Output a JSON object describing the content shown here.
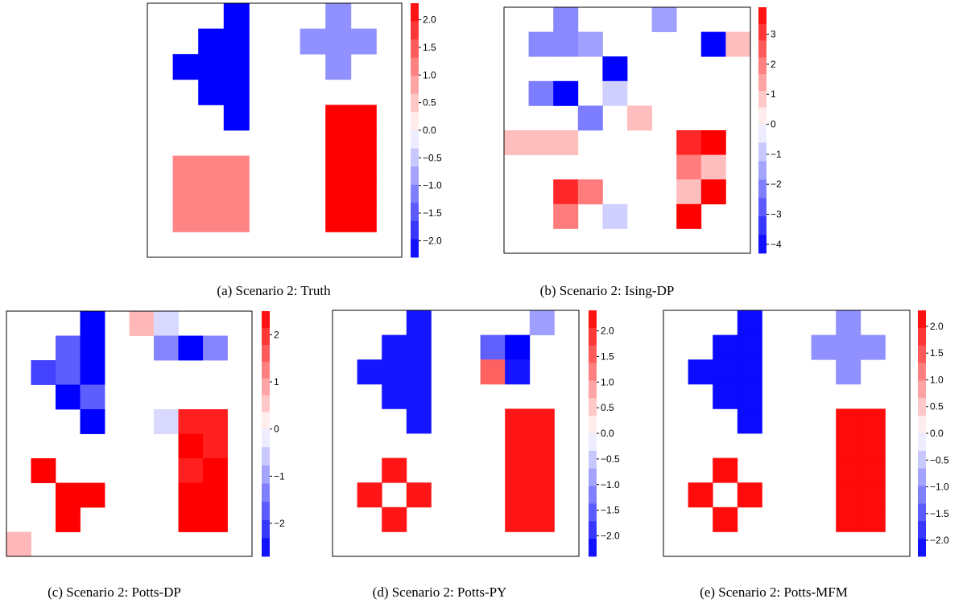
{
  "colors": {
    "negative_strong": "#0000ff",
    "positive_strong": "#ff0000",
    "neutral": "#ffffff",
    "frame": "#000000"
  },
  "chart_data": [
    {
      "type": "heatmap",
      "caption": "(a) Scenario 2: Truth",
      "grid_size": [
        10,
        10
      ],
      "range": [
        -2.3,
        2.3
      ],
      "colorbar_ticks": [
        "2.0",
        "1.5",
        "1.0",
        "0.5",
        "0.0",
        "−0.5",
        "−1.0",
        "−1.5",
        "−2.0"
      ],
      "colorbar_tick_values": [
        2.0,
        1.5,
        1.0,
        0.5,
        0.0,
        -0.5,
        -1.0,
        -1.5,
        -2.0
      ],
      "cells": [
        {
          "row": 0,
          "col": 3,
          "value": -2.3
        },
        {
          "row": 1,
          "col": 2,
          "value": -2.3
        },
        {
          "row": 1,
          "col": 3,
          "value": -2.3
        },
        {
          "row": 2,
          "col": 1,
          "value": -2.3
        },
        {
          "row": 2,
          "col": 2,
          "value": -2.3
        },
        {
          "row": 2,
          "col": 3,
          "value": -2.3
        },
        {
          "row": 3,
          "col": 2,
          "value": -2.3
        },
        {
          "row": 3,
          "col": 3,
          "value": -2.3
        },
        {
          "row": 4,
          "col": 3,
          "value": -2.3
        },
        {
          "row": 0,
          "col": 7,
          "value": -1.0
        },
        {
          "row": 1,
          "col": 6,
          "value": -1.0
        },
        {
          "row": 1,
          "col": 7,
          "value": -1.0
        },
        {
          "row": 1,
          "col": 8,
          "value": -1.0
        },
        {
          "row": 2,
          "col": 7,
          "value": -1.0
        },
        {
          "row": 4,
          "col": 7,
          "value": 2.3
        },
        {
          "row": 4,
          "col": 8,
          "value": 2.3
        },
        {
          "row": 5,
          "col": 7,
          "value": 2.3
        },
        {
          "row": 5,
          "col": 8,
          "value": 2.3
        },
        {
          "row": 6,
          "col": 7,
          "value": 2.3
        },
        {
          "row": 6,
          "col": 8,
          "value": 2.3
        },
        {
          "row": 7,
          "col": 7,
          "value": 2.3
        },
        {
          "row": 7,
          "col": 8,
          "value": 2.3
        },
        {
          "row": 8,
          "col": 7,
          "value": 2.3
        },
        {
          "row": 8,
          "col": 8,
          "value": 2.3
        },
        {
          "row": 6,
          "col": 1,
          "value": 1.1
        },
        {
          "row": 6,
          "col": 2,
          "value": 1.1
        },
        {
          "row": 6,
          "col": 3,
          "value": 1.1
        },
        {
          "row": 7,
          "col": 1,
          "value": 1.1
        },
        {
          "row": 7,
          "col": 2,
          "value": 1.1
        },
        {
          "row": 7,
          "col": 3,
          "value": 1.1
        },
        {
          "row": 8,
          "col": 1,
          "value": 1.1
        },
        {
          "row": 8,
          "col": 2,
          "value": 1.1
        },
        {
          "row": 8,
          "col": 3,
          "value": 1.1
        }
      ]
    },
    {
      "type": "heatmap",
      "caption": "(b) Scenario 2: Ising-DP",
      "grid_size": [
        10,
        10
      ],
      "range": [
        -4.3,
        3.9
      ],
      "colorbar_ticks": [
        "3",
        "2",
        "1",
        "0",
        "−1",
        "−2",
        "−3",
        "−4"
      ],
      "colorbar_tick_values": [
        3,
        2,
        1,
        0,
        -1,
        -2,
        -3,
        -4
      ],
      "cells": [
        {
          "row": 0,
          "col": 2,
          "value": -2.0
        },
        {
          "row": 0,
          "col": 6,
          "value": -1.6
        },
        {
          "row": 1,
          "col": 1,
          "value": -2.0
        },
        {
          "row": 1,
          "col": 2,
          "value": -2.0
        },
        {
          "row": 1,
          "col": 3,
          "value": -1.6
        },
        {
          "row": 1,
          "col": 8,
          "value": -4.3
        },
        {
          "row": 1,
          "col": 9,
          "value": 1.0
        },
        {
          "row": 2,
          "col": 4,
          "value": -4.3
        },
        {
          "row": 3,
          "col": 1,
          "value": -2.2
        },
        {
          "row": 3,
          "col": 2,
          "value": -4.3
        },
        {
          "row": 3,
          "col": 4,
          "value": -0.8
        },
        {
          "row": 4,
          "col": 3,
          "value": -2.2
        },
        {
          "row": 4,
          "col": 5,
          "value": 1.0
        },
        {
          "row": 5,
          "col": 0,
          "value": 1.0
        },
        {
          "row": 5,
          "col": 1,
          "value": 1.0
        },
        {
          "row": 5,
          "col": 2,
          "value": 1.0
        },
        {
          "row": 5,
          "col": 7,
          "value": 3.3
        },
        {
          "row": 5,
          "col": 8,
          "value": 3.9
        },
        {
          "row": 6,
          "col": 7,
          "value": 2.0
        },
        {
          "row": 6,
          "col": 8,
          "value": 1.0
        },
        {
          "row": 7,
          "col": 2,
          "value": 3.3
        },
        {
          "row": 7,
          "col": 3,
          "value": 2.0
        },
        {
          "row": 7,
          "col": 7,
          "value": 1.0
        },
        {
          "row": 7,
          "col": 8,
          "value": 3.9
        },
        {
          "row": 8,
          "col": 2,
          "value": 2.0
        },
        {
          "row": 8,
          "col": 4,
          "value": -0.8
        },
        {
          "row": 8,
          "col": 7,
          "value": 3.9
        }
      ]
    },
    {
      "type": "heatmap",
      "caption": "(c) Scenario 2: Potts-DP",
      "grid_size": [
        10,
        10
      ],
      "range": [
        -2.7,
        2.5
      ],
      "colorbar_ticks": [
        "2",
        "1",
        "0",
        "−1",
        "−2"
      ],
      "colorbar_tick_values": [
        2,
        1,
        0,
        -1,
        -2
      ],
      "cells": [
        {
          "row": 0,
          "col": 3,
          "value": -2.7
        },
        {
          "row": 0,
          "col": 5,
          "value": 0.7
        },
        {
          "row": 0,
          "col": 6,
          "value": -0.4
        },
        {
          "row": 1,
          "col": 2,
          "value": -1.7
        },
        {
          "row": 1,
          "col": 3,
          "value": -2.7
        },
        {
          "row": 1,
          "col": 6,
          "value": -1.3
        },
        {
          "row": 1,
          "col": 7,
          "value": -2.7
        },
        {
          "row": 1,
          "col": 8,
          "value": -1.3
        },
        {
          "row": 2,
          "col": 1,
          "value": -2.0
        },
        {
          "row": 2,
          "col": 2,
          "value": -1.7
        },
        {
          "row": 2,
          "col": 3,
          "value": -2.7
        },
        {
          "row": 3,
          "col": 2,
          "value": -2.7
        },
        {
          "row": 3,
          "col": 3,
          "value": -1.7
        },
        {
          "row": 4,
          "col": 3,
          "value": -2.7
        },
        {
          "row": 4,
          "col": 6,
          "value": -0.4
        },
        {
          "row": 4,
          "col": 7,
          "value": 2.2
        },
        {
          "row": 4,
          "col": 8,
          "value": 2.2
        },
        {
          "row": 5,
          "col": 7,
          "value": 2.5
        },
        {
          "row": 5,
          "col": 8,
          "value": 2.2
        },
        {
          "row": 6,
          "col": 1,
          "value": 2.5
        },
        {
          "row": 6,
          "col": 7,
          "value": 2.2
        },
        {
          "row": 6,
          "col": 8,
          "value": 2.5
        },
        {
          "row": 7,
          "col": 2,
          "value": 2.5
        },
        {
          "row": 7,
          "col": 3,
          "value": 2.5
        },
        {
          "row": 7,
          "col": 7,
          "value": 2.5
        },
        {
          "row": 7,
          "col": 8,
          "value": 2.5
        },
        {
          "row": 8,
          "col": 2,
          "value": 2.5
        },
        {
          "row": 8,
          "col": 7,
          "value": 2.5
        },
        {
          "row": 8,
          "col": 8,
          "value": 2.5
        },
        {
          "row": 9,
          "col": 0,
          "value": 0.7
        }
      ]
    },
    {
      "type": "heatmap",
      "caption": "(d) Scenario 2: Potts-PY",
      "grid_size": [
        10,
        10
      ],
      "range": [
        -2.4,
        2.4
      ],
      "colorbar_ticks": [
        "2.0",
        "1.5",
        "1.0",
        "0.5",
        "0.0",
        "−0.5",
        "−1.0",
        "−1.5",
        "−2.0"
      ],
      "colorbar_tick_values": [
        2.0,
        1.5,
        1.0,
        0.5,
        0.0,
        -0.5,
        -1.0,
        -1.5,
        -2.0
      ],
      "cells": [
        {
          "row": 0,
          "col": 3,
          "value": -2.2
        },
        {
          "row": 0,
          "col": 8,
          "value": -0.9
        },
        {
          "row": 1,
          "col": 2,
          "value": -2.2
        },
        {
          "row": 1,
          "col": 3,
          "value": -2.2
        },
        {
          "row": 1,
          "col": 6,
          "value": -1.5
        },
        {
          "row": 1,
          "col": 7,
          "value": -2.4
        },
        {
          "row": 2,
          "col": 1,
          "value": -2.2
        },
        {
          "row": 2,
          "col": 2,
          "value": -2.2
        },
        {
          "row": 2,
          "col": 3,
          "value": -2.2
        },
        {
          "row": 2,
          "col": 6,
          "value": 1.5
        },
        {
          "row": 2,
          "col": 7,
          "value": -2.2
        },
        {
          "row": 3,
          "col": 2,
          "value": -2.2
        },
        {
          "row": 3,
          "col": 3,
          "value": -2.2
        },
        {
          "row": 4,
          "col": 3,
          "value": -2.2
        },
        {
          "row": 4,
          "col": 7,
          "value": 2.2
        },
        {
          "row": 4,
          "col": 8,
          "value": 2.2
        },
        {
          "row": 5,
          "col": 7,
          "value": 2.2
        },
        {
          "row": 5,
          "col": 8,
          "value": 2.2
        },
        {
          "row": 6,
          "col": 2,
          "value": 2.2
        },
        {
          "row": 6,
          "col": 7,
          "value": 2.2
        },
        {
          "row": 6,
          "col": 8,
          "value": 2.2
        },
        {
          "row": 7,
          "col": 1,
          "value": 2.2
        },
        {
          "row": 7,
          "col": 3,
          "value": 2.2
        },
        {
          "row": 7,
          "col": 7,
          "value": 2.2
        },
        {
          "row": 7,
          "col": 8,
          "value": 2.2
        },
        {
          "row": 8,
          "col": 2,
          "value": 2.2
        },
        {
          "row": 8,
          "col": 7,
          "value": 2.2
        },
        {
          "row": 8,
          "col": 8,
          "value": 2.2
        }
      ]
    },
    {
      "type": "heatmap",
      "caption": "(e) Scenario 2: Potts-MFM",
      "grid_size": [
        10,
        10
      ],
      "range": [
        -2.3,
        2.3
      ],
      "colorbar_ticks": [
        "2.0",
        "1.5",
        "1.0",
        "0.5",
        "0.0",
        "−0.5",
        "−1.0",
        "−1.5",
        "−2.0"
      ],
      "colorbar_tick_values": [
        2.0,
        1.5,
        1.0,
        0.5,
        0.0,
        -0.5,
        -1.0,
        -1.5,
        -2.0
      ],
      "cells": [
        {
          "row": 0,
          "col": 3,
          "value": -2.2
        },
        {
          "row": 0,
          "col": 7,
          "value": -1.0
        },
        {
          "row": 1,
          "col": 2,
          "value": -2.2
        },
        {
          "row": 1,
          "col": 3,
          "value": -2.2
        },
        {
          "row": 1,
          "col": 6,
          "value": -1.0
        },
        {
          "row": 1,
          "col": 7,
          "value": -1.0
        },
        {
          "row": 1,
          "col": 8,
          "value": -1.0
        },
        {
          "row": 2,
          "col": 1,
          "value": -2.2
        },
        {
          "row": 2,
          "col": 2,
          "value": -2.2
        },
        {
          "row": 2,
          "col": 3,
          "value": -2.2
        },
        {
          "row": 2,
          "col": 7,
          "value": -1.0
        },
        {
          "row": 3,
          "col": 2,
          "value": -2.2
        },
        {
          "row": 3,
          "col": 3,
          "value": -2.2
        },
        {
          "row": 4,
          "col": 3,
          "value": -2.2
        },
        {
          "row": 4,
          "col": 7,
          "value": 2.2
        },
        {
          "row": 4,
          "col": 8,
          "value": 2.2
        },
        {
          "row": 5,
          "col": 7,
          "value": 2.2
        },
        {
          "row": 5,
          "col": 8,
          "value": 2.2
        },
        {
          "row": 6,
          "col": 2,
          "value": 2.2
        },
        {
          "row": 6,
          "col": 7,
          "value": 2.2
        },
        {
          "row": 6,
          "col": 8,
          "value": 2.2
        },
        {
          "row": 7,
          "col": 1,
          "value": 2.2
        },
        {
          "row": 7,
          "col": 3,
          "value": 2.2
        },
        {
          "row": 7,
          "col": 7,
          "value": 2.2
        },
        {
          "row": 7,
          "col": 8,
          "value": 2.2
        },
        {
          "row": 8,
          "col": 2,
          "value": 2.2
        },
        {
          "row": 8,
          "col": 7,
          "value": 2.2
        },
        {
          "row": 8,
          "col": 8,
          "value": 2.2
        }
      ]
    }
  ]
}
